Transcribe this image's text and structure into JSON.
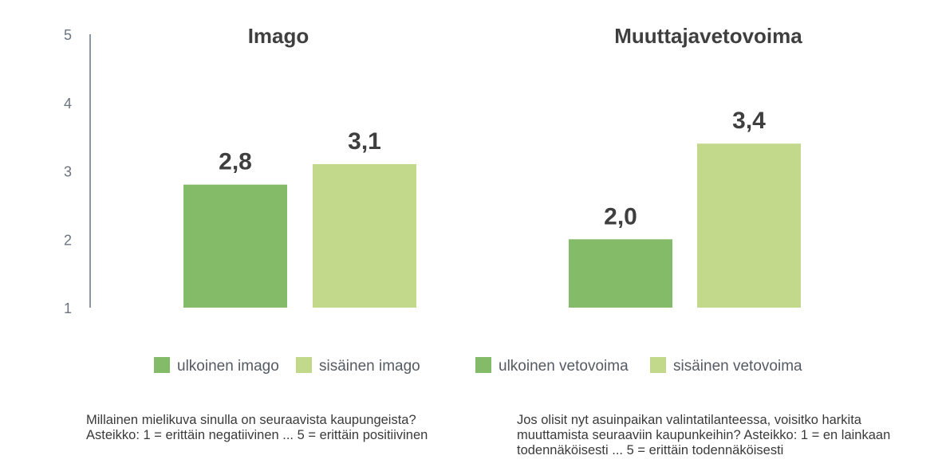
{
  "chart_data": {
    "type": "bar",
    "y_ticks": [
      "5",
      "4",
      "3",
      "2",
      "1"
    ],
    "ylim": [
      1,
      5
    ],
    "grid": false,
    "panels": [
      {
        "title": "Imago",
        "series": [
          {
            "name": "ulkoinen imago",
            "value": 2.8,
            "label": "2,8",
            "color": "#84bb68"
          },
          {
            "name": "sisäinen imago",
            "value": 3.1,
            "label": "3,1",
            "color": "#c2d98c"
          }
        ],
        "note_lines": [
          "Millainen mielikuva sinulla on seuraavista kaupungeista?",
          "Asteikko: 1 = erittäin negatiivinen ... 5 = erittäin positiivinen"
        ]
      },
      {
        "title": "Muuttajavetovoima",
        "series": [
          {
            "name": "ulkoinen vetovoima",
            "value": 2.0,
            "label": "2,0",
            "color": "#84bb68"
          },
          {
            "name": "sisäinen vetovoima",
            "value": 3.4,
            "label": "3,4",
            "color": "#c2d98c"
          }
        ],
        "note_lines": [
          "Jos olisit nyt asuinpaikan valintatilanteessa, voisitko harkita",
          "muuttamista seuraaviin kaupunkeihin? Asteikko: 1 = en lainkaan",
          "todennäköisesti ... 5 = erittäin todennäköisesti"
        ]
      }
    ]
  }
}
